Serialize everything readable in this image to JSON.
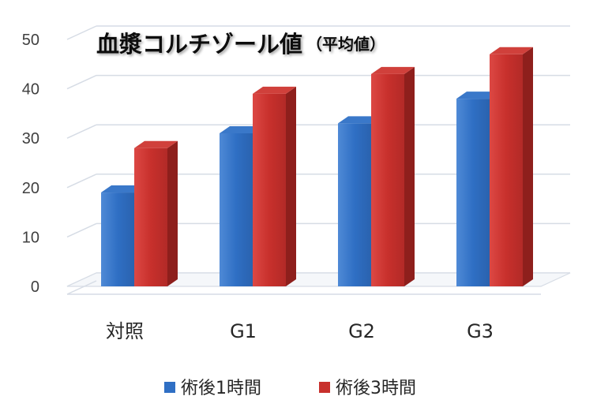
{
  "chart_data": {
    "type": "bar",
    "title": "血漿コルチゾール値",
    "subtitle": "（平均値）",
    "categories": [
      "対照",
      "G1",
      "G2",
      "G3"
    ],
    "series": [
      {
        "name": "術後1時間",
        "values": [
          19,
          31,
          33,
          38
        ],
        "color": "#2f6fc4"
      },
      {
        "name": "術後3時間",
        "values": [
          28,
          39,
          43,
          47
        ],
        "color": "#c8302c"
      }
    ],
    "ylim": [
      0,
      50
    ],
    "yticks": [
      0,
      10,
      20,
      30,
      40,
      50
    ],
    "grid": true,
    "style": "3d-column",
    "legend_position": "bottom"
  }
}
